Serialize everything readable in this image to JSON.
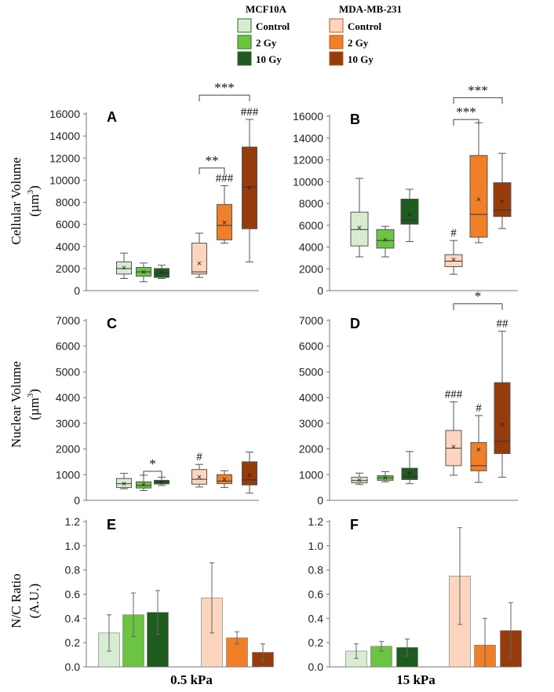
{
  "legend": {
    "groups": [
      {
        "title": "MCF10A",
        "items": [
          {
            "label": "Control",
            "color": "#d7ecd0"
          },
          {
            "label": "2 Gy",
            "color": "#6cc542"
          },
          {
            "label": "10 Gy",
            "color": "#1f5a1e"
          }
        ]
      },
      {
        "title": "MDA-MB-231",
        "items": [
          {
            "label": "Control",
            "color": "#fbd5bd"
          },
          {
            "label": "2 Gy",
            "color": "#f07f2a"
          },
          {
            "label": "10 Gy",
            "color": "#963c0c"
          }
        ]
      }
    ]
  },
  "row_labels": {
    "cellular": {
      "line1": "Cellular Volume",
      "line2": "(µm",
      "sup": "3",
      "close": ")"
    },
    "nuclear": {
      "line1": "Nuclear Volume",
      "line2": "(µm",
      "sup": "3",
      "close": ")"
    },
    "ratio": {
      "line1": "N/C Ratio",
      "line2": "(A.U.)"
    }
  },
  "column_labels": [
    "0.5 kPa",
    "15 kPa"
  ],
  "chart_data": [
    {
      "id": "A",
      "type": "box",
      "ylim": [
        0,
        16000
      ],
      "yticks": [
        0,
        2000,
        4000,
        6000,
        8000,
        10000,
        12000,
        14000,
        16000
      ],
      "boxes": [
        {
          "group": "MCF10A Control",
          "min": 1100,
          "q1": 1500,
          "median": 2000,
          "q3": 2600,
          "max": 3400,
          "mean": 2100,
          "color": "#d7ecd0"
        },
        {
          "group": "MCF10A 2 Gy",
          "min": 800,
          "q1": 1300,
          "median": 1700,
          "q3": 2100,
          "max": 2500,
          "mean": 1700,
          "color": "#6cc542"
        },
        {
          "group": "MCF10A 10 Gy",
          "min": 1100,
          "q1": 1200,
          "median": 1600,
          "q3": 2000,
          "max": 2300,
          "mean": 1700,
          "color": "#1f5a1e"
        },
        {
          "group": "MDA-MB-231 Control",
          "min": 1200,
          "q1": 1500,
          "median": 1700,
          "q3": 4300,
          "max": 5200,
          "mean": 2500,
          "color": "#fbd5bd",
          "label": ""
        },
        {
          "group": "MDA-MB-231 2 Gy",
          "min": 4300,
          "q1": 4600,
          "median": 5900,
          "q3": 7800,
          "max": 9500,
          "mean": 6200,
          "color": "#f07f2a",
          "label": "###"
        },
        {
          "group": "MDA-MB-231 10 Gy",
          "min": 2600,
          "q1": 5600,
          "median": 9400,
          "q3": 13000,
          "max": 15500,
          "mean": 9300,
          "color": "#963c0c",
          "label": "###"
        }
      ],
      "brackets": [
        {
          "from": 3,
          "to": 5,
          "y": 17700,
          "label": "***"
        },
        {
          "from": 3,
          "to": 4,
          "y": 11100,
          "label": "**"
        }
      ]
    },
    {
      "id": "B",
      "type": "box",
      "ylim": [
        0,
        16000
      ],
      "yticks": [
        0,
        2000,
        4000,
        6000,
        8000,
        10000,
        12000,
        14000,
        16000
      ],
      "boxes": [
        {
          "group": "MCF10A Control",
          "min": 3100,
          "q1": 4100,
          "median": 5600,
          "q3": 7200,
          "max": 10300,
          "mean": 5800,
          "color": "#d7ecd0"
        },
        {
          "group": "MCF10A 2 Gy",
          "min": 3100,
          "q1": 3900,
          "median": 4600,
          "q3": 5600,
          "max": 5900,
          "mean": 4700,
          "color": "#6cc542"
        },
        {
          "group": "MCF10A 10 Gy",
          "min": 4500,
          "q1": 6100,
          "median": 6500,
          "q3": 8400,
          "max": 9300,
          "mean": 7000,
          "color": "#1f5a1e"
        },
        {
          "group": "MDA-MB-231 Control",
          "min": 1500,
          "q1": 2200,
          "median": 2700,
          "q3": 3300,
          "max": 4600,
          "mean": 2900,
          "color": "#fbd5bd",
          "label": "#"
        },
        {
          "group": "MDA-MB-231 2 Gy",
          "min": 4400,
          "q1": 4900,
          "median": 7000,
          "q3": 12400,
          "max": 15400,
          "mean": 8400,
          "color": "#f07f2a",
          "label": ""
        },
        {
          "group": "MDA-MB-231 10 Gy",
          "min": 5700,
          "q1": 6800,
          "median": 7400,
          "q3": 9900,
          "max": 12600,
          "mean": 8200,
          "color": "#963c0c",
          "label": ""
        }
      ],
      "brackets": [
        {
          "from": 3,
          "to": 5,
          "y": 17700,
          "label": "***"
        },
        {
          "from": 3,
          "to": 4,
          "y": 15700,
          "label": "***"
        }
      ]
    },
    {
      "id": "C",
      "type": "box",
      "ylim": [
        0,
        7000
      ],
      "yticks": [
        0,
        1000,
        2000,
        3000,
        4000,
        5000,
        6000,
        7000
      ],
      "boxes": [
        {
          "group": "MCF10A Control",
          "min": 450,
          "q1": 500,
          "median": 650,
          "q3": 850,
          "max": 1050,
          "mean": 650,
          "color": "#d7ecd0"
        },
        {
          "group": "MCF10A 2 Gy",
          "min": 380,
          "q1": 480,
          "median": 580,
          "q3": 720,
          "max": 980,
          "mean": 620,
          "color": "#6cc542"
        },
        {
          "group": "MCF10A 10 Gy",
          "min": 580,
          "q1": 640,
          "median": 700,
          "q3": 780,
          "max": 900,
          "mean": 710,
          "color": "#1f5a1e"
        },
        {
          "group": "MDA-MB-231 Control",
          "min": 520,
          "q1": 630,
          "median": 820,
          "q3": 1200,
          "max": 1400,
          "mean": 920,
          "color": "#fbd5bd",
          "label": "#"
        },
        {
          "group": "MDA-MB-231 2 Gy",
          "min": 500,
          "q1": 650,
          "median": 750,
          "q3": 1000,
          "max": 1150,
          "mean": 820,
          "color": "#f07f2a",
          "label": ""
        },
        {
          "group": "MDA-MB-231 10 Gy",
          "min": 280,
          "q1": 600,
          "median": 800,
          "q3": 1500,
          "max": 1880,
          "mean": 1000,
          "color": "#963c0c",
          "label": ""
        }
      ],
      "brackets": [
        {
          "from": 1,
          "to": 2,
          "y": 1130,
          "label": "*"
        }
      ]
    },
    {
      "id": "D",
      "type": "box",
      "ylim": [
        0,
        7000
      ],
      "yticks": [
        0,
        1000,
        2000,
        3000,
        4000,
        5000,
        6000,
        7000
      ],
      "boxes": [
        {
          "group": "MCF10A Control",
          "min": 620,
          "q1": 680,
          "median": 770,
          "q3": 900,
          "max": 1060,
          "mean": 790,
          "color": "#d7ecd0"
        },
        {
          "group": "MCF10A 2 Gy",
          "min": 720,
          "q1": 780,
          "median": 880,
          "q3": 960,
          "max": 1120,
          "mean": 880,
          "color": "#6cc542"
        },
        {
          "group": "MCF10A 10 Gy",
          "min": 650,
          "q1": 810,
          "median": 930,
          "q3": 1250,
          "max": 1900,
          "mean": 1050,
          "color": "#1f5a1e"
        },
        {
          "group": "MDA-MB-231 Control",
          "min": 980,
          "q1": 1350,
          "median": 2030,
          "q3": 2720,
          "max": 3830,
          "mean": 2100,
          "color": "#fbd5bd",
          "label": "###"
        },
        {
          "group": "MDA-MB-231 2 Gy",
          "min": 700,
          "q1": 1150,
          "median": 1350,
          "q3": 2250,
          "max": 3300,
          "mean": 1980,
          "color": "#f07f2a",
          "label": "#"
        },
        {
          "group": "MDA-MB-231 10 Gy",
          "min": 900,
          "q1": 1820,
          "median": 2300,
          "q3": 4580,
          "max": 6580,
          "mean": 2970,
          "color": "#963c0c",
          "label": "##"
        }
      ],
      "brackets": [
        {
          "from": 3,
          "to": 5,
          "y": 7650,
          "label": "*"
        }
      ]
    },
    {
      "id": "E",
      "type": "bar",
      "ylim": [
        0,
        1.2
      ],
      "yticks": [
        0,
        0.2,
        0.4,
        0.6,
        0.8,
        1.0,
        1.2
      ],
      "bars": [
        {
          "group": "MCF10A Control",
          "value": 0.28,
          "err": 0.15,
          "color": "#d7ecd0"
        },
        {
          "group": "MCF10A 2 Gy",
          "value": 0.43,
          "err": 0.18,
          "color": "#6cc542"
        },
        {
          "group": "MCF10A 10 Gy",
          "value": 0.45,
          "err": 0.18,
          "color": "#1f5a1e"
        },
        {
          "group": "MDA-MB-231 Control",
          "value": 0.57,
          "err": 0.29,
          "color": "#fbd5bd"
        },
        {
          "group": "MDA-MB-231 2 Gy",
          "value": 0.24,
          "err": 0.05,
          "color": "#f07f2a"
        },
        {
          "group": "MDA-MB-231 10 Gy",
          "value": 0.12,
          "err": 0.07,
          "color": "#963c0c"
        }
      ]
    },
    {
      "id": "F",
      "type": "bar",
      "ylim": [
        0,
        1.2
      ],
      "yticks": [
        0,
        0.2,
        0.4,
        0.6,
        0.8,
        1.0,
        1.2
      ],
      "bars": [
        {
          "group": "MCF10A Control",
          "value": 0.13,
          "err": 0.06,
          "color": "#d7ecd0"
        },
        {
          "group": "MCF10A 2 Gy",
          "value": 0.17,
          "err": 0.04,
          "color": "#6cc542"
        },
        {
          "group": "MCF10A 10 Gy",
          "value": 0.16,
          "err": 0.07,
          "color": "#1f5a1e"
        },
        {
          "group": "MDA-MB-231 Control",
          "value": 0.75,
          "err": 0.4,
          "color": "#fbd5bd"
        },
        {
          "group": "MDA-MB-231 2 Gy",
          "value": 0.18,
          "err": 0.22,
          "color": "#f07f2a"
        },
        {
          "group": "MDA-MB-231 10 Gy",
          "value": 0.3,
          "err": 0.23,
          "color": "#963c0c"
        }
      ]
    }
  ]
}
